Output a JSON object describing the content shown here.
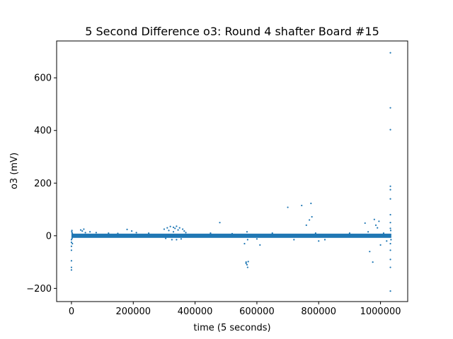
{
  "chart_data": {
    "type": "scatter",
    "title": "5 Second Difference o3: Round 4 shafter Board #15",
    "xlabel": "time (5 seconds)",
    "ylabel": "o3 (mV)",
    "xlim": [
      -48000,
      1088000
    ],
    "ylim": [
      -250,
      740
    ],
    "x_ticks": [
      0,
      200000,
      400000,
      600000,
      800000,
      1000000
    ],
    "x_tick_labels": [
      "0",
      "200000",
      "400000",
      "600000",
      "800000",
      "1000000"
    ],
    "y_ticks": [
      -200,
      0,
      200,
      400,
      600
    ],
    "y_tick_labels": [
      "−200",
      "0",
      "200",
      "400",
      "600"
    ],
    "grid": false,
    "marker_color": "#1f77b4",
    "band": {
      "x_start": 0,
      "x_end": 1035000,
      "y_low": -8,
      "y_high": 8
    },
    "points": [
      [
        0,
        -15
      ],
      [
        0,
        -25
      ],
      [
        0,
        -40
      ],
      [
        0,
        -55
      ],
      [
        0,
        -95
      ],
      [
        0,
        -120
      ],
      [
        0,
        -130
      ],
      [
        1000,
        15
      ],
      [
        2000,
        -10
      ],
      [
        1500,
        20
      ],
      [
        3000,
        -30
      ],
      [
        2500,
        10
      ],
      [
        30000,
        22
      ],
      [
        35000,
        18
      ],
      [
        40000,
        25
      ],
      [
        45000,
        12
      ],
      [
        60000,
        15
      ],
      [
        80000,
        12
      ],
      [
        120000,
        10
      ],
      [
        150000,
        9
      ],
      [
        180000,
        24
      ],
      [
        195000,
        18
      ],
      [
        210000,
        12
      ],
      [
        250000,
        10
      ],
      [
        300000,
        25
      ],
      [
        305000,
        -10
      ],
      [
        310000,
        30
      ],
      [
        315000,
        20
      ],
      [
        320000,
        35
      ],
      [
        325000,
        -15
      ],
      [
        330000,
        32
      ],
      [
        335000,
        28
      ],
      [
        340000,
        36
      ],
      [
        345000,
        22
      ],
      [
        350000,
        30
      ],
      [
        355000,
        -12
      ],
      [
        360000,
        25
      ],
      [
        365000,
        18
      ],
      [
        370000,
        12
      ],
      [
        340000,
        -15
      ],
      [
        330000,
        15
      ],
      [
        450000,
        10
      ],
      [
        480000,
        50
      ],
      [
        520000,
        8
      ],
      [
        565000,
        -100
      ],
      [
        565000,
        -105
      ],
      [
        568000,
        -110
      ],
      [
        570000,
        -120
      ],
      [
        572000,
        -98
      ],
      [
        568000,
        15
      ],
      [
        570000,
        -15
      ],
      [
        560000,
        -30
      ],
      [
        600000,
        -12
      ],
      [
        610000,
        -35
      ],
      [
        650000,
        10
      ],
      [
        700000,
        108
      ],
      [
        720000,
        -15
      ],
      [
        745000,
        115
      ],
      [
        760000,
        40
      ],
      [
        770000,
        60
      ],
      [
        775000,
        123
      ],
      [
        778000,
        72
      ],
      [
        790000,
        10
      ],
      [
        800000,
        -20
      ],
      [
        820000,
        -15
      ],
      [
        900000,
        10
      ],
      [
        950000,
        48
      ],
      [
        960000,
        15
      ],
      [
        965000,
        -60
      ],
      [
        975000,
        -100
      ],
      [
        980000,
        62
      ],
      [
        985000,
        40
      ],
      [
        990000,
        30
      ],
      [
        995000,
        55
      ],
      [
        1000000,
        -35
      ],
      [
        1010000,
        10
      ],
      [
        1020000,
        -20
      ],
      [
        1032000,
        695
      ],
      [
        1032000,
        486
      ],
      [
        1032000,
        403
      ],
      [
        1032000,
        188
      ],
      [
        1032000,
        175
      ],
      [
        1032000,
        140
      ],
      [
        1032000,
        80
      ],
      [
        1032000,
        50
      ],
      [
        1032000,
        28
      ],
      [
        1032000,
        -30
      ],
      [
        1032000,
        -55
      ],
      [
        1032000,
        -90
      ],
      [
        1032000,
        -120
      ],
      [
        1032000,
        -210
      ],
      [
        1033000,
        20
      ],
      [
        1034000,
        -15
      ]
    ]
  }
}
